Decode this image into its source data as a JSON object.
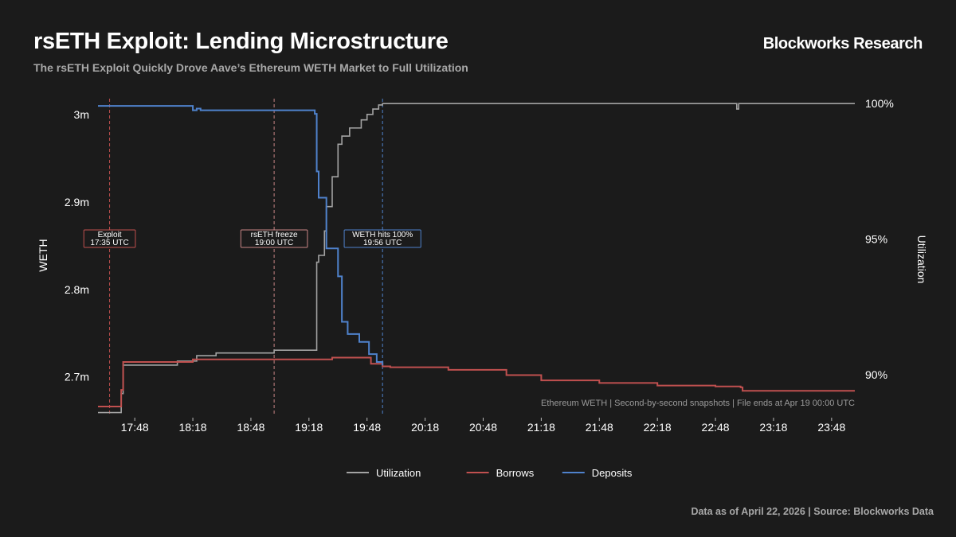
{
  "header": {
    "title": "rsETH Exploit: Lending Microstructure",
    "subtitle": "The rsETH Exploit Quickly Drove Aave’s Ethereum WETH Market to Full Utilization",
    "brand": "Blockworks Research"
  },
  "footer": "Data as of April 22, 2026 | Source: Blockworks Data",
  "chart_data": {
    "type": "line",
    "ylabel": "WETH",
    "y2label": "Utilization",
    "note": "Ethereum WETH | Second-by-second snapshots | File ends at Apr 19 00:00 UTC",
    "xlim": [
      "17:29",
      "24:00"
    ],
    "ylim": [
      2.656,
      3.022
    ],
    "y2lim": [
      88.5,
      100.3
    ],
    "xticks": [
      "17:48",
      "18:18",
      "18:48",
      "19:18",
      "19:48",
      "20:18",
      "20:48",
      "21:18",
      "21:48",
      "22:18",
      "22:48",
      "23:18",
      "23:48"
    ],
    "yticks": [
      {
        "v": 2.7,
        "label": "2.7m"
      },
      {
        "v": 2.8,
        "label": "2.8m"
      },
      {
        "v": 2.9,
        "label": "2.9m"
      },
      {
        "v": 3.0,
        "label": "3m"
      }
    ],
    "y2ticks": [
      {
        "v": 90,
        "label": "90%"
      },
      {
        "v": 95,
        "label": "95%"
      },
      {
        "v": 100,
        "label": "100%"
      }
    ],
    "grid": false,
    "legend": "bottom",
    "series": [
      {
        "name": "Utilization",
        "axis": "right",
        "color": "#a3a3a3",
        "x": [
          "17:29",
          "17:40",
          "17:41",
          "17:42",
          "18:10",
          "18:20",
          "18:30",
          "19:00",
          "19:22",
          "19:23",
          "19:26",
          "19:27",
          "19:30",
          "19:33",
          "19:35",
          "19:39",
          "19:45",
          "19:48",
          "19:51",
          "19:54",
          "19:56",
          "22:58",
          "22:59",
          "23:00",
          "24:00"
        ],
        "y": [
          88.6,
          88.6,
          89.3,
          90.35,
          90.5,
          90.7,
          90.8,
          90.9,
          94.15,
          94.4,
          95.3,
          96.2,
          97.3,
          98.5,
          98.8,
          99.1,
          99.4,
          99.6,
          99.8,
          99.95,
          100,
          100,
          99.8,
          100,
          100
        ]
      },
      {
        "name": "Borrows",
        "axis": "left",
        "color": "#c0504f",
        "x": [
          "17:29",
          "17:40",
          "17:41",
          "17:42",
          "18:18",
          "19:00",
          "19:30",
          "19:50",
          "19:56",
          "20:00",
          "20:30",
          "21:00",
          "21:18",
          "21:48",
          "22:18",
          "22:48",
          "23:01",
          "23:02",
          "24:00"
        ],
        "y": [
          2.666,
          2.666,
          2.685,
          2.717,
          2.72,
          2.72,
          2.722,
          2.715,
          2.712,
          2.711,
          2.708,
          2.702,
          2.696,
          2.693,
          2.69,
          2.689,
          2.688,
          2.684,
          2.684
        ]
      },
      {
        "name": "Deposits",
        "axis": "left",
        "color": "#4f82cc",
        "x": [
          "17:29",
          "18:12",
          "18:18",
          "18:20",
          "18:22",
          "19:21",
          "19:22",
          "19:23",
          "19:27",
          "19:33",
          "19:35",
          "19:38",
          "19:44",
          "19:49",
          "19:53",
          "19:56"
        ],
        "y": [
          3.01,
          3.01,
          3.005,
          3.007,
          3.005,
          3.001,
          2.935,
          2.905,
          2.847,
          2.815,
          2.763,
          2.749,
          2.74,
          2.726,
          2.717,
          2.713
        ]
      }
    ],
    "annotations": [
      {
        "x": "17:35",
        "label1": "Exploit",
        "label2": "17:35 UTC",
        "color": "#c0504f"
      },
      {
        "x": "19:00",
        "label1": "rsETH freeze",
        "label2": "19:00 UTC",
        "color": "#c98585"
      },
      {
        "x": "19:56",
        "label1": "WETH hits 100%",
        "label2": "19:56 UTC",
        "color": "#4f82cc"
      }
    ]
  }
}
